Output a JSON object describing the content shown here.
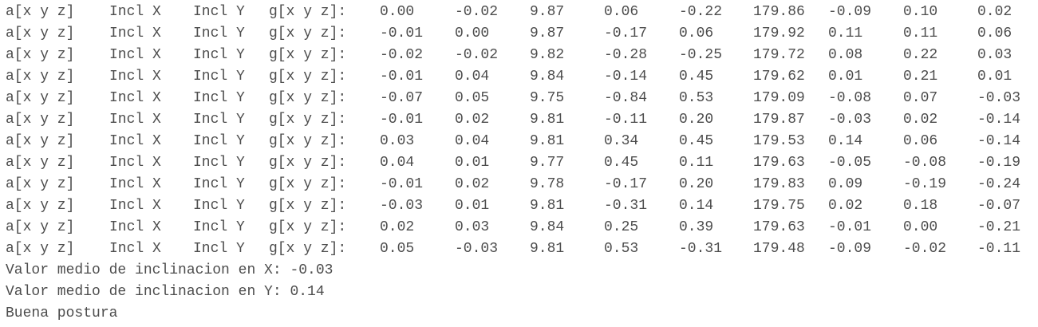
{
  "console": {
    "rows": [
      {
        "a_label": "a[x y z]",
        "incl_x_label": "Incl X",
        "incl_y_label": "Incl Y",
        "g_label": "g[x y z]:",
        "values": [
          "0.00",
          "-0.02",
          "9.87",
          "0.06",
          "-0.22",
          "179.86",
          "-0.09",
          "0.10",
          "0.02"
        ]
      },
      {
        "a_label": "a[x y z]",
        "incl_x_label": "Incl X",
        "incl_y_label": "Incl Y",
        "g_label": "g[x y z]:",
        "values": [
          "-0.01",
          "0.00",
          "9.87",
          "-0.17",
          "0.06",
          "179.92",
          "0.11",
          "0.11",
          "0.06"
        ]
      },
      {
        "a_label": "a[x y z]",
        "incl_x_label": "Incl X",
        "incl_y_label": "Incl Y",
        "g_label": "g[x y z]:",
        "values": [
          "-0.02",
          "-0.02",
          "9.82",
          "-0.28",
          "-0.25",
          "179.72",
          "0.08",
          "0.22",
          "0.03"
        ]
      },
      {
        "a_label": "a[x y z]",
        "incl_x_label": "Incl X",
        "incl_y_label": "Incl Y",
        "g_label": "g[x y z]:",
        "values": [
          "-0.01",
          "0.04",
          "9.84",
          "-0.14",
          "0.45",
          "179.62",
          "0.01",
          "0.21",
          "0.01"
        ]
      },
      {
        "a_label": "a[x y z]",
        "incl_x_label": "Incl X",
        "incl_y_label": "Incl Y",
        "g_label": "g[x y z]:",
        "values": [
          "-0.07",
          "0.05",
          "9.75",
          "-0.84",
          "0.53",
          "179.09",
          "-0.08",
          "0.07",
          "-0.03"
        ]
      },
      {
        "a_label": "a[x y z]",
        "incl_x_label": "Incl X",
        "incl_y_label": "Incl Y",
        "g_label": "g[x y z]:",
        "values": [
          "-0.01",
          "0.02",
          "9.81",
          "-0.11",
          "0.20",
          "179.87",
          "-0.03",
          "0.02",
          "-0.14"
        ]
      },
      {
        "a_label": "a[x y z]",
        "incl_x_label": "Incl X",
        "incl_y_label": "Incl Y",
        "g_label": "g[x y z]:",
        "values": [
          "0.03",
          "0.04",
          "9.81",
          "0.34",
          "0.45",
          "179.53",
          "0.14",
          "0.06",
          "-0.14"
        ]
      },
      {
        "a_label": "a[x y z]",
        "incl_x_label": "Incl X",
        "incl_y_label": "Incl Y",
        "g_label": "g[x y z]:",
        "values": [
          "0.04",
          "0.01",
          "9.77",
          "0.45",
          "0.11",
          "179.63",
          "-0.05",
          "-0.08",
          "-0.19"
        ]
      },
      {
        "a_label": "a[x y z]",
        "incl_x_label": "Incl X",
        "incl_y_label": "Incl Y",
        "g_label": "g[x y z]:",
        "values": [
          "-0.01",
          "0.02",
          "9.78",
          "-0.17",
          "0.20",
          "179.83",
          "0.09",
          "-0.19",
          "-0.24"
        ]
      },
      {
        "a_label": "a[x y z]",
        "incl_x_label": "Incl X",
        "incl_y_label": "Incl Y",
        "g_label": "g[x y z]:",
        "values": [
          "-0.03",
          "0.01",
          "9.81",
          "-0.31",
          "0.14",
          "179.75",
          "0.02",
          "0.18",
          "-0.07"
        ]
      },
      {
        "a_label": "a[x y z]",
        "incl_x_label": "Incl X",
        "incl_y_label": "Incl Y",
        "g_label": "g[x y z]:",
        "values": [
          "0.02",
          "0.03",
          "9.84",
          "0.25",
          "0.39",
          "179.63",
          "-0.01",
          "0.00",
          "-0.21"
        ]
      },
      {
        "a_label": "a[x y z]",
        "incl_x_label": "Incl X",
        "incl_y_label": "Incl Y",
        "g_label": "g[x y z]:",
        "values": [
          "0.05",
          "-0.03",
          "9.81",
          "0.53",
          "-0.31",
          "179.48",
          "-0.09",
          "-0.02",
          "-0.11"
        ]
      }
    ],
    "summary": {
      "mean_x": "Valor medio de inclinacion en X: -0.03",
      "mean_y": "Valor medio de inclinacion en Y: 0.14",
      "verdict": "Buena postura"
    }
  }
}
